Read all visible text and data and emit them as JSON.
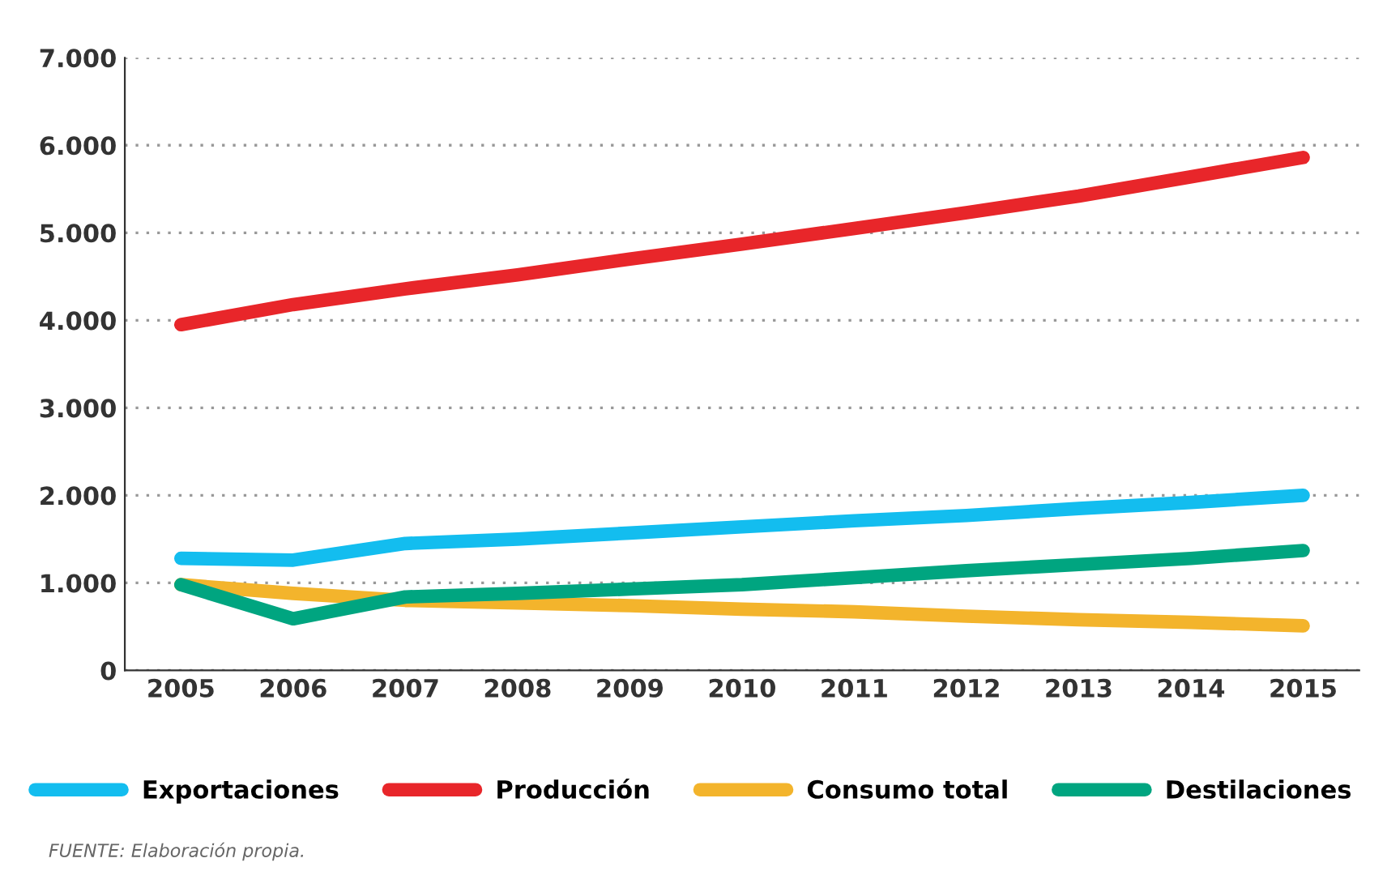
{
  "chart_data": {
    "type": "line",
    "categories": [
      "2005",
      "2006",
      "2007",
      "2008",
      "2009",
      "2010",
      "2011",
      "2012",
      "2013",
      "2014",
      "2015"
    ],
    "series": [
      {
        "name": "Exportaciones",
        "color": "#13bdef",
        "values": [
          1280,
          1260,
          1450,
          1500,
          1570,
          1640,
          1710,
          1770,
          1850,
          1920,
          2000
        ]
      },
      {
        "name": "Producción",
        "color": "#e8262a",
        "values": [
          3950,
          4180,
          4360,
          4520,
          4700,
          4870,
          5050,
          5230,
          5420,
          5640,
          5860
        ]
      },
      {
        "name": "Consumo total",
        "color": "#f3b42c",
        "values": [
          980,
          880,
          800,
          770,
          740,
          700,
          670,
          620,
          580,
          550,
          510
        ]
      },
      {
        "name": "Destilaciones",
        "color": "#00a580",
        "values": [
          980,
          590,
          840,
          880,
          930,
          980,
          1060,
          1140,
          1210,
          1280,
          1370
        ]
      }
    ],
    "ylim": [
      0,
      7000
    ],
    "yticks": [
      0,
      {
        "value": 1000,
        "label": "1.000"
      },
      {
        "value": 2000,
        "label": "2.000"
      },
      {
        "value": 3000,
        "label": "3.000"
      },
      {
        "value": 4000,
        "label": "4.000"
      },
      {
        "value": 5000,
        "label": "5.000"
      },
      {
        "value": 6000,
        "label": "6.000"
      },
      {
        "value": 7000,
        "label": "7.000"
      }
    ],
    "grid": "y",
    "legend": "bottom",
    "marker": "none",
    "line_style": "solid",
    "annotations": [
      "FUENTE: Elaboración propia."
    ]
  }
}
